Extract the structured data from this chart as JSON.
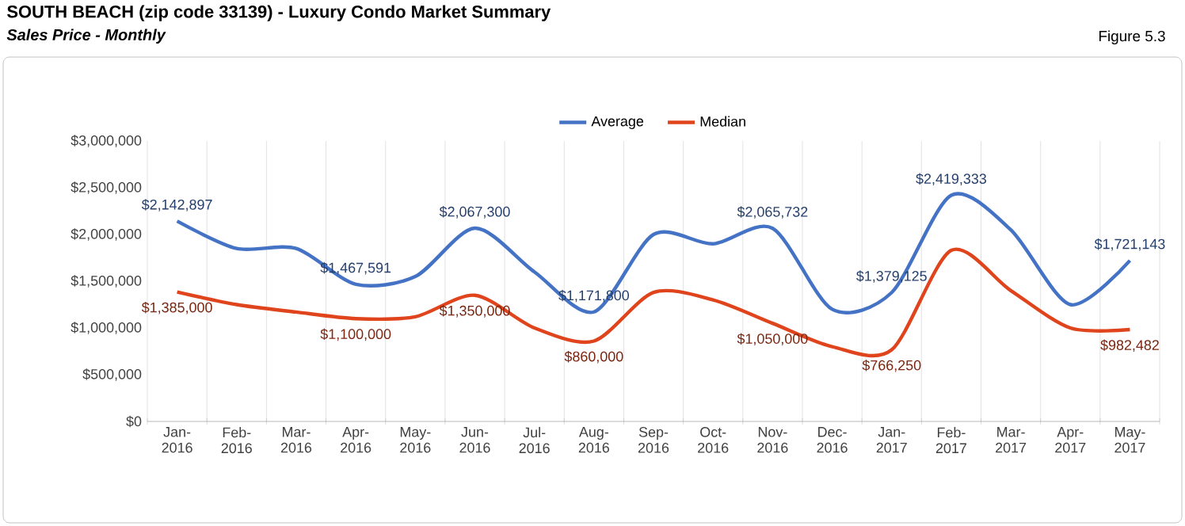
{
  "chart_data": {
    "type": "line",
    "title": "SOUTH BEACH (zip code 33139) - Luxury Condo Market Summary",
    "subtitle": "Sales Price - Monthly",
    "annotations": [
      "Figure 5.3"
    ],
    "categories": [
      "Jan-2016",
      "Feb-2016",
      "Mar-2016",
      "Apr-2016",
      "May-2016",
      "Jun-2016",
      "Jul-2016",
      "Aug-2016",
      "Sep-2016",
      "Oct-2016",
      "Nov-2016",
      "Dec-2016",
      "Jan-2017",
      "Feb-2017",
      "Mar-2017",
      "Apr-2017",
      "May-2017"
    ],
    "series": [
      {
        "name": "Average",
        "color": "#4472c4",
        "values": [
          2142897,
          1850000,
          1850000,
          1467591,
          1550000,
          2067300,
          1600000,
          1171800,
          2000000,
          1900000,
          2065732,
          1200000,
          1379125,
          2419333,
          2050000,
          1250000,
          1721143
        ],
        "value_labels": [
          "$2,142,897",
          null,
          null,
          "$1,467,591",
          null,
          "$2,067,300",
          null,
          "$1,171,800",
          null,
          null,
          "$2,065,732",
          null,
          "$1,379,125",
          "$2,419,333",
          null,
          null,
          "$1,721,143"
        ]
      },
      {
        "name": "Median",
        "color": "#e0441c",
        "values": [
          1385000,
          1250000,
          1170000,
          1100000,
          1120000,
          1350000,
          1000000,
          860000,
          1380000,
          1300000,
          1050000,
          800000,
          766250,
          1830000,
          1400000,
          1000000,
          982482
        ],
        "value_labels": [
          "$1,385,000",
          null,
          null,
          "$1,100,000",
          null,
          "$1,350,000",
          null,
          "$860,000",
          null,
          null,
          "$1,050,000",
          null,
          "$766,250",
          null,
          null,
          null,
          "$982,482"
        ]
      }
    ],
    "ylim": [
      0,
      3000000
    ],
    "yticks": [
      {
        "value": 0,
        "label": "$0"
      },
      {
        "value": 500000,
        "label": "$500,000"
      },
      {
        "value": 1000000,
        "label": "$1,000,000"
      },
      {
        "value": 1500000,
        "label": "$1,500,000"
      },
      {
        "value": 2000000,
        "label": "$2,000,000"
      },
      {
        "value": 2500000,
        "label": "$2,500,000"
      },
      {
        "value": 3000000,
        "label": "$3,000,000"
      }
    ],
    "grid": "x",
    "legend": "top",
    "marker": "none",
    "line_style": "solid"
  }
}
